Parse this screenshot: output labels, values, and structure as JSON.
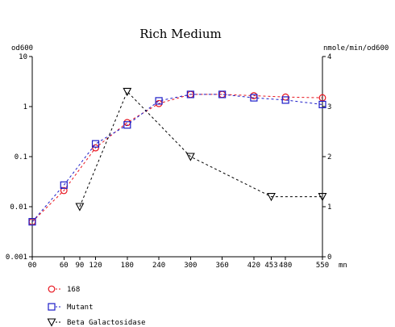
{
  "chart_data": {
    "type": "line",
    "title": "Rich Medium",
    "left_axis_label": "od600",
    "right_axis_label": "nmole/min/od600",
    "x_unit": "mn",
    "x_ticks": [
      0,
      60,
      90,
      120,
      180,
      240,
      300,
      360,
      420,
      453,
      480,
      550
    ],
    "x_tick_labels": [
      "00",
      "60",
      "90",
      "120",
      "180",
      "240",
      "300",
      "360",
      "420",
      "453",
      "480",
      "550"
    ],
    "xlim": [
      0,
      550
    ],
    "left_axis": {
      "scale": "log",
      "ylim": [
        0.001,
        10
      ],
      "tick_values": [
        0.001,
        0.01,
        0.1,
        1,
        10
      ],
      "tick_labels": [
        "0.001",
        "0.01",
        "0.1",
        "1",
        "10"
      ]
    },
    "right_axis": {
      "scale": "linear",
      "ylim": [
        0,
        4
      ],
      "tick_values": [
        0,
        1,
        2,
        3,
        4
      ],
      "tick_labels": [
        "0",
        "1",
        "2",
        "3",
        "4"
      ]
    },
    "legend_position": "bottom-left",
    "series": [
      {
        "name": "168",
        "axis": "left",
        "marker": "circle",
        "color": "#e8141e",
        "x": [
          0,
          60,
          120,
          180,
          240,
          300,
          360,
          420,
          480,
          550
        ],
        "y": [
          0.005,
          0.021,
          0.15,
          0.48,
          1.15,
          1.75,
          1.75,
          1.65,
          1.55,
          1.5
        ]
      },
      {
        "name": "Mutant",
        "axis": "left",
        "marker": "square",
        "color": "#1c1cc8",
        "x": [
          0,
          60,
          120,
          180,
          240,
          300,
          360,
          420,
          480,
          550
        ],
        "y": [
          0.005,
          0.027,
          0.18,
          0.43,
          1.3,
          1.75,
          1.75,
          1.5,
          1.35,
          1.1
        ]
      },
      {
        "name": "Beta Galactosidase",
        "axis": "right",
        "marker": "triangle-down",
        "color": "#000000",
        "x": [
          90,
          180,
          300,
          453,
          550
        ],
        "y": [
          1.0,
          3.3,
          2.0,
          1.2,
          1.2
        ]
      }
    ]
  }
}
